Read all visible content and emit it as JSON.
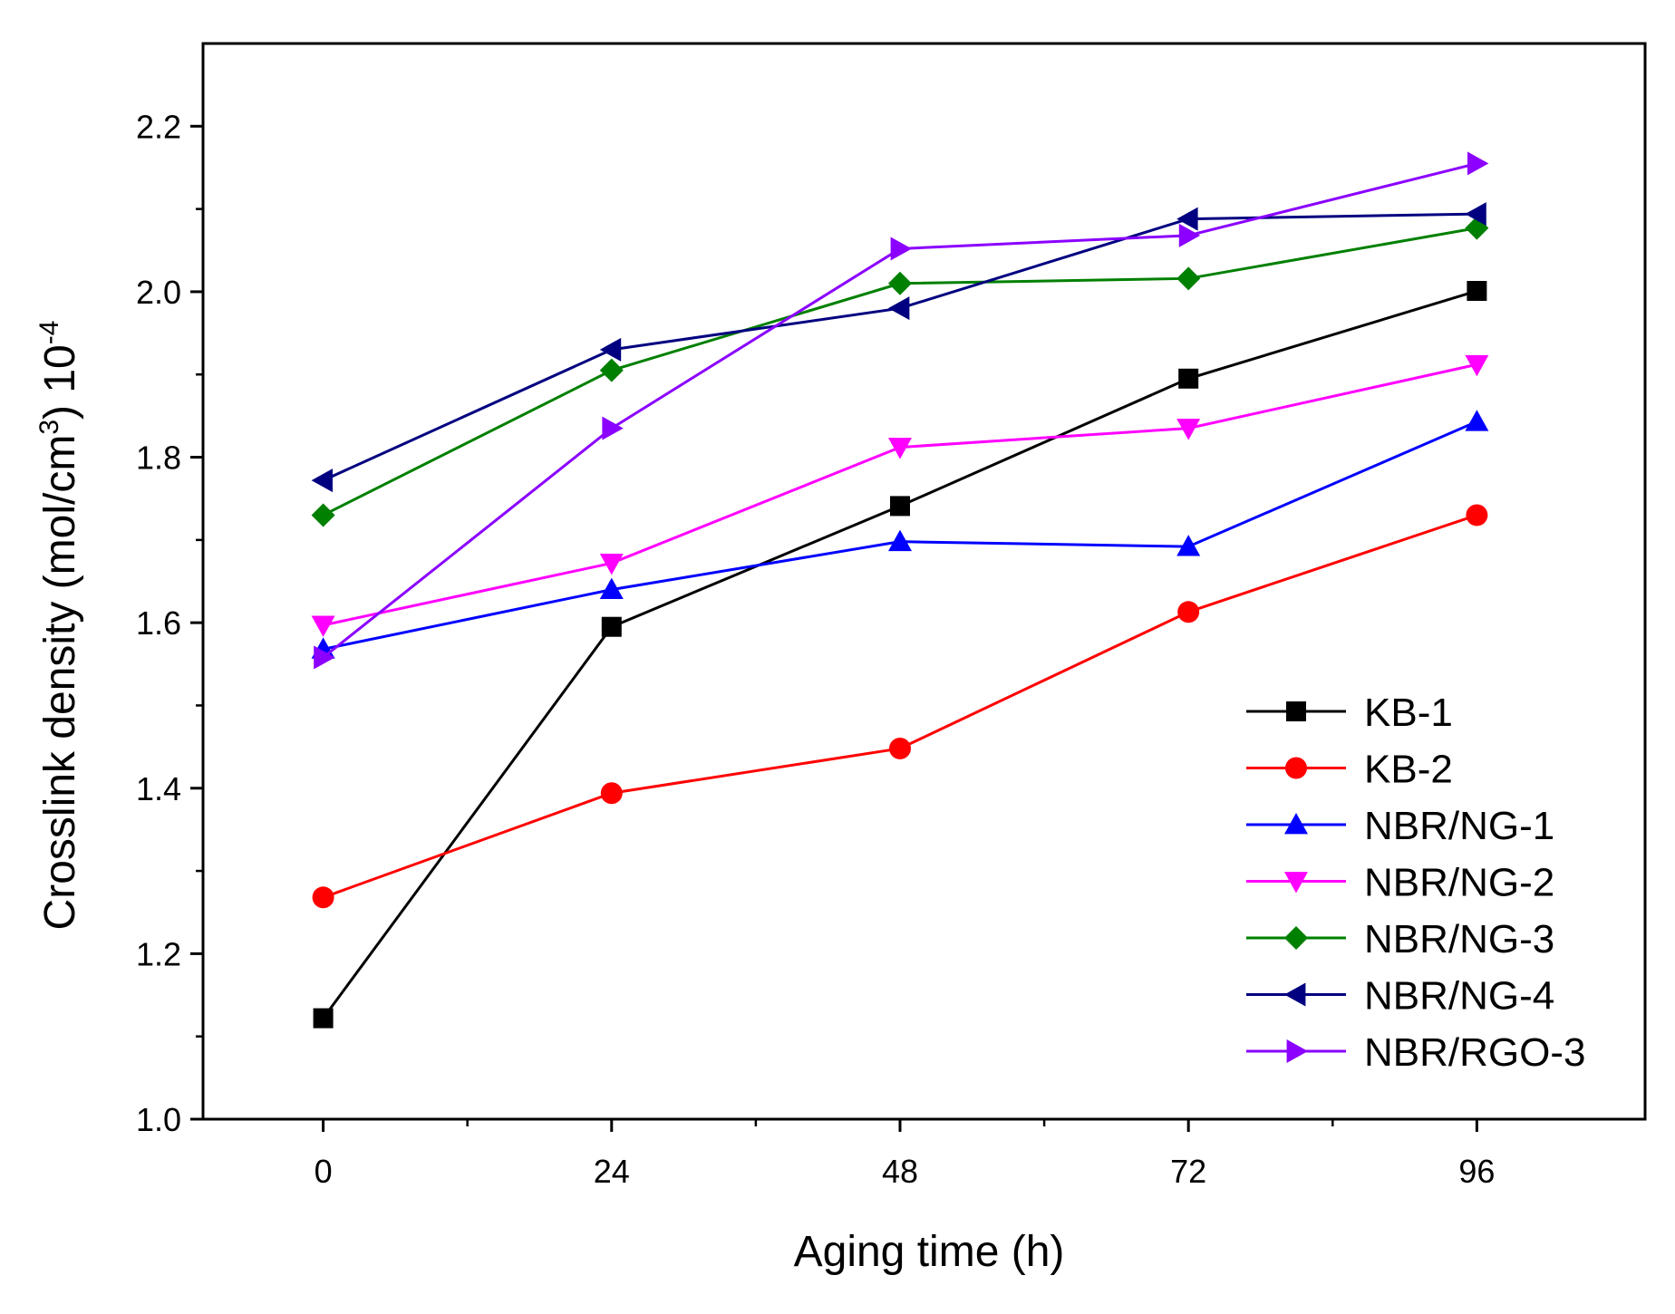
{
  "chart_data": {
    "type": "line",
    "title": "",
    "xlabel": "Aging time (h)",
    "ylabel": {
      "main": "Crosslink density (mol/cm",
      "sup1": "3",
      "mid": ") 10",
      "sup2": "-4"
    },
    "x": [
      0,
      24,
      48,
      72,
      96
    ],
    "xlim": [
      -10,
      110
    ],
    "ylim": [
      1.0,
      2.3
    ],
    "xticks": [
      "0",
      "24",
      "48",
      "72",
      "96"
    ],
    "yticks": [
      "1.0",
      "1.2",
      "1.4",
      "1.6",
      "1.8",
      "2.0",
      "2.2"
    ],
    "legend_position": "bottom-right",
    "grid": false,
    "series": [
      {
        "name": "KB-1",
        "color": "#000000",
        "marker": "square",
        "values": [
          1.122,
          1.595,
          1.741,
          1.895,
          2.001
        ]
      },
      {
        "name": "KB-2",
        "color": "#ff0000",
        "marker": "circle",
        "values": [
          1.268,
          1.394,
          1.448,
          1.613,
          1.73
        ]
      },
      {
        "name": "NBR/NG-1",
        "color": "#0000ff",
        "marker": "triangle-up",
        "values": [
          1.568,
          1.64,
          1.698,
          1.692,
          1.843
        ]
      },
      {
        "name": "NBR/NG-2",
        "color": "#ff00ff",
        "marker": "triangle-down",
        "values": [
          1.597,
          1.672,
          1.812,
          1.835,
          1.912
        ]
      },
      {
        "name": "NBR/NG-3",
        "color": "#008000",
        "marker": "diamond",
        "values": [
          1.73,
          1.905,
          2.01,
          2.016,
          2.077
        ]
      },
      {
        "name": "NBR/NG-4",
        "color": "#000080",
        "marker": "triangle-left",
        "values": [
          1.772,
          1.93,
          1.98,
          2.088,
          2.094
        ]
      },
      {
        "name": "NBR/RGO-3",
        "color": "#8b00ff",
        "marker": "triangle-right",
        "values": [
          1.558,
          1.835,
          2.052,
          2.068,
          2.155
        ]
      }
    ]
  }
}
